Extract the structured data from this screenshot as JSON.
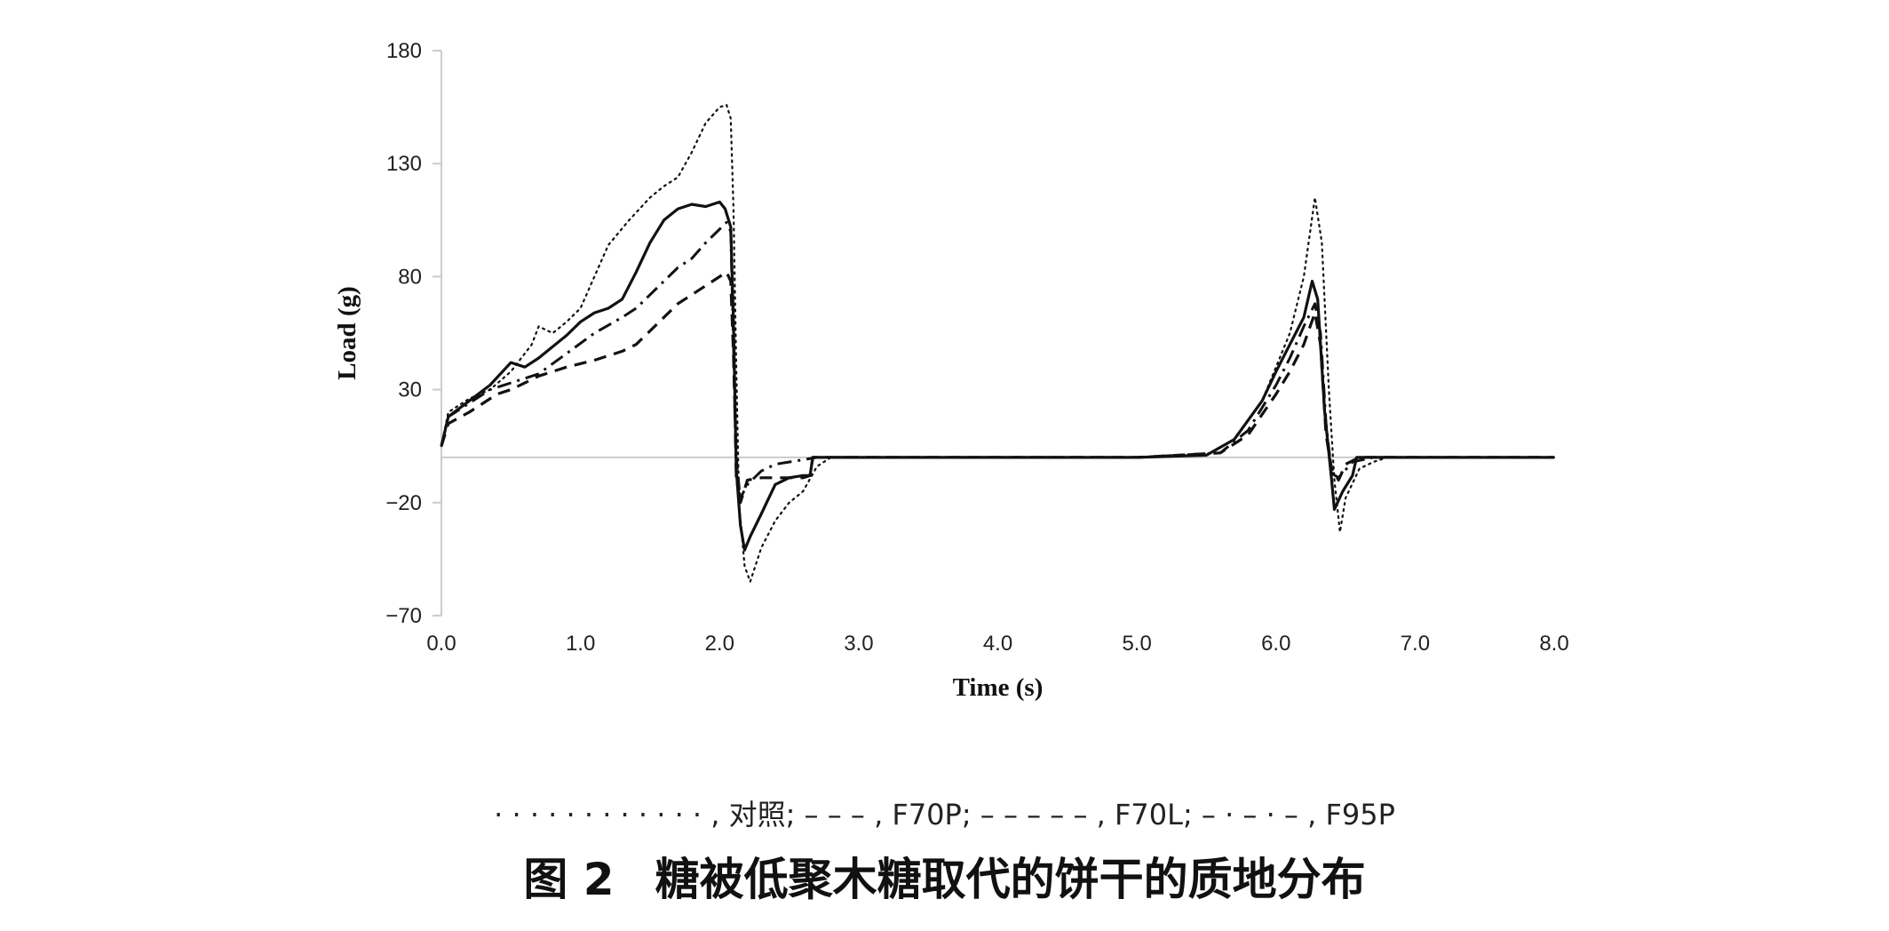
{
  "chart_data": {
    "type": "line",
    "title": "",
    "xlabel": "Time (s)",
    "ylabel": "Load (g)",
    "xlim": [
      0,
      8
    ],
    "ylim": [
      -70,
      180
    ],
    "xticks": [
      "0.0",
      "1.0",
      "2.0",
      "3.0",
      "4.0",
      "5.0",
      "6.0",
      "7.0",
      "8.0"
    ],
    "yticks": [
      "180",
      "130",
      "80",
      "30",
      "−20",
      "−70"
    ],
    "ytick_values": [
      180,
      130,
      80,
      30,
      -20,
      -70
    ],
    "xtick_values": [
      0,
      1,
      2,
      3,
      4,
      5,
      6,
      7,
      8
    ],
    "zero_line": true,
    "grid": false,
    "series": [
      {
        "style": "dotted",
        "points": [
          [
            0,
            5
          ],
          [
            0.05,
            20
          ],
          [
            0.2,
            26
          ],
          [
            0.35,
            30
          ],
          [
            0.5,
            38
          ],
          [
            0.65,
            50
          ],
          [
            0.7,
            58
          ],
          [
            0.8,
            55
          ],
          [
            0.9,
            60
          ],
          [
            1.0,
            66
          ],
          [
            1.1,
            80
          ],
          [
            1.2,
            94
          ],
          [
            1.35,
            105
          ],
          [
            1.5,
            115
          ],
          [
            1.6,
            120
          ],
          [
            1.7,
            124
          ],
          [
            1.8,
            135
          ],
          [
            1.9,
            148
          ],
          [
            2.0,
            155
          ],
          [
            2.05,
            156
          ],
          [
            2.08,
            150
          ],
          [
            2.1,
            110
          ],
          [
            2.12,
            40
          ],
          [
            2.14,
            -20
          ],
          [
            2.18,
            -48
          ],
          [
            2.22,
            -55
          ],
          [
            2.3,
            -40
          ],
          [
            2.4,
            -28
          ],
          [
            2.5,
            -20
          ],
          [
            2.6,
            -15
          ],
          [
            2.7,
            -4
          ],
          [
            2.8,
            0
          ],
          [
            3.0,
            0
          ],
          [
            5.0,
            0
          ],
          [
            5.5,
            1
          ],
          [
            5.7,
            8
          ],
          [
            5.9,
            25
          ],
          [
            6.0,
            40
          ],
          [
            6.1,
            55
          ],
          [
            6.2,
            80
          ],
          [
            6.28,
            115
          ],
          [
            6.33,
            95
          ],
          [
            6.38,
            30
          ],
          [
            6.42,
            -10
          ],
          [
            6.46,
            -33
          ],
          [
            6.5,
            -18
          ],
          [
            6.6,
            -5
          ],
          [
            6.7,
            -2
          ],
          [
            6.8,
            0
          ],
          [
            7.5,
            0
          ],
          [
            8.0,
            0
          ]
        ]
      },
      {
        "style": "dash",
        "points": [
          [
            0,
            5
          ],
          [
            0.05,
            15
          ],
          [
            0.2,
            20
          ],
          [
            0.3,
            24
          ],
          [
            0.4,
            28
          ],
          [
            0.5,
            30
          ],
          [
            0.7,
            36
          ],
          [
            0.9,
            40
          ],
          [
            1.1,
            43
          ],
          [
            1.3,
            47
          ],
          [
            1.4,
            50
          ],
          [
            1.5,
            56
          ],
          [
            1.6,
            62
          ],
          [
            1.7,
            68
          ],
          [
            1.8,
            72
          ],
          [
            1.9,
            76
          ],
          [
            2.0,
            80
          ],
          [
            2.05,
            82
          ],
          [
            2.08,
            78
          ],
          [
            2.1,
            45
          ],
          [
            2.12,
            0
          ],
          [
            2.15,
            -20
          ],
          [
            2.2,
            -10
          ],
          [
            2.3,
            -9
          ],
          [
            2.6,
            -9
          ],
          [
            2.65,
            -8
          ],
          [
            2.67,
            0
          ],
          [
            2.8,
            0
          ],
          [
            5.0,
            0
          ],
          [
            5.6,
            2
          ],
          [
            5.8,
            10
          ],
          [
            6.0,
            28
          ],
          [
            6.1,
            38
          ],
          [
            6.2,
            50
          ],
          [
            6.28,
            64
          ],
          [
            6.32,
            50
          ],
          [
            6.36,
            10
          ],
          [
            6.4,
            -5
          ],
          [
            6.45,
            -10
          ],
          [
            6.5,
            -3
          ],
          [
            6.6,
            0
          ],
          [
            7.5,
            0
          ],
          [
            8.0,
            0
          ]
        ]
      },
      {
        "style": "dash-dot",
        "points": [
          [
            0,
            5
          ],
          [
            0.05,
            18
          ],
          [
            0.2,
            24
          ],
          [
            0.35,
            30
          ],
          [
            0.5,
            33
          ],
          [
            0.7,
            37
          ],
          [
            0.9,
            46
          ],
          [
            1.1,
            55
          ],
          [
            1.3,
            62
          ],
          [
            1.4,
            66
          ],
          [
            1.5,
            72
          ],
          [
            1.6,
            78
          ],
          [
            1.7,
            84
          ],
          [
            1.8,
            88
          ],
          [
            1.9,
            95
          ],
          [
            2.0,
            101
          ],
          [
            2.05,
            104
          ],
          [
            2.08,
            100
          ],
          [
            2.1,
            50
          ],
          [
            2.12,
            -10
          ],
          [
            2.15,
            -18
          ],
          [
            2.2,
            -12
          ],
          [
            2.3,
            -6
          ],
          [
            2.4,
            -3
          ],
          [
            2.6,
            -1
          ],
          [
            2.7,
            0
          ],
          [
            5.0,
            0
          ],
          [
            5.6,
            2
          ],
          [
            5.8,
            12
          ],
          [
            6.0,
            32
          ],
          [
            6.1,
            44
          ],
          [
            6.2,
            58
          ],
          [
            6.28,
            68
          ],
          [
            6.32,
            55
          ],
          [
            6.36,
            15
          ],
          [
            6.4,
            -7
          ],
          [
            6.45,
            -9
          ],
          [
            6.55,
            -2
          ],
          [
            6.7,
            0
          ],
          [
            7.5,
            0
          ],
          [
            8.0,
            0
          ]
        ]
      },
      {
        "style": "solid",
        "points": [
          [
            0,
            5
          ],
          [
            0.05,
            18
          ],
          [
            0.2,
            25
          ],
          [
            0.35,
            32
          ],
          [
            0.5,
            42
          ],
          [
            0.6,
            40
          ],
          [
            0.7,
            44
          ],
          [
            0.9,
            54
          ],
          [
            1.0,
            60
          ],
          [
            1.1,
            64
          ],
          [
            1.2,
            66
          ],
          [
            1.3,
            70
          ],
          [
            1.4,
            82
          ],
          [
            1.5,
            95
          ],
          [
            1.6,
            105
          ],
          [
            1.7,
            110
          ],
          [
            1.8,
            112
          ],
          [
            1.9,
            111
          ],
          [
            2.0,
            113
          ],
          [
            2.04,
            110
          ],
          [
            2.08,
            102
          ],
          [
            2.1,
            60
          ],
          [
            2.12,
            -5
          ],
          [
            2.15,
            -30
          ],
          [
            2.18,
            -41
          ],
          [
            2.22,
            -35
          ],
          [
            2.3,
            -25
          ],
          [
            2.4,
            -12
          ],
          [
            2.5,
            -9
          ],
          [
            2.6,
            -8
          ],
          [
            2.65,
            -8
          ],
          [
            2.67,
            0
          ],
          [
            2.8,
            0
          ],
          [
            5.0,
            0
          ],
          [
            5.5,
            1
          ],
          [
            5.7,
            8
          ],
          [
            5.9,
            25
          ],
          [
            6.0,
            38
          ],
          [
            6.1,
            50
          ],
          [
            6.2,
            62
          ],
          [
            6.26,
            78
          ],
          [
            6.3,
            70
          ],
          [
            6.35,
            20
          ],
          [
            6.4,
            -10
          ],
          [
            6.42,
            -23
          ],
          [
            6.48,
            -15
          ],
          [
            6.55,
            -8
          ],
          [
            6.58,
            0
          ],
          [
            6.7,
            0
          ],
          [
            7.5,
            0
          ],
          [
            8.0,
            0
          ]
        ]
      }
    ]
  },
  "legend_text": "· · · · · · · · · · · · ,  对照;  – – – , F70P;   – – – – – , F70L;  – · – · – , F95P",
  "caption": {
    "number": "图 2",
    "text": "糖被低聚木糖取代的饼干的质地分布"
  }
}
